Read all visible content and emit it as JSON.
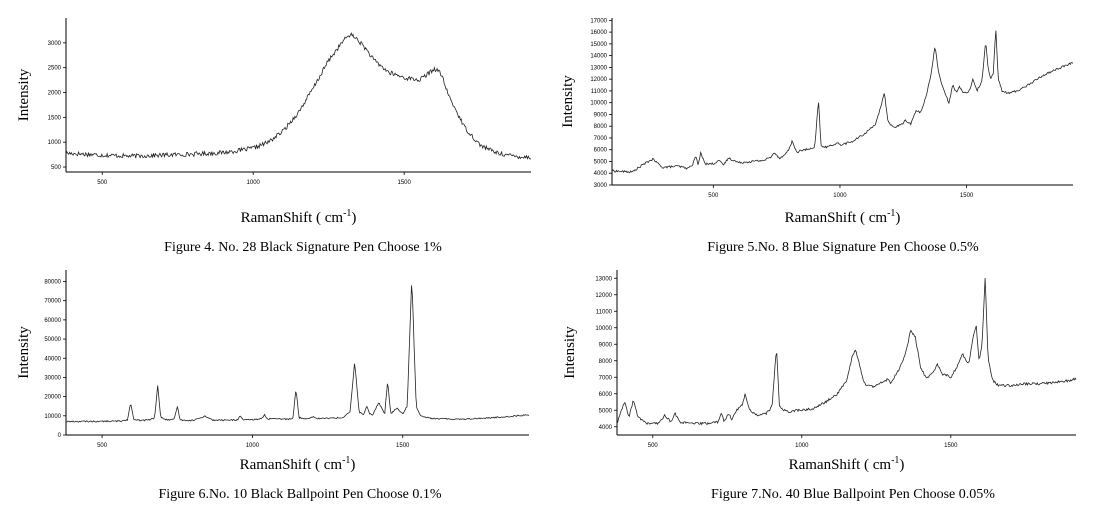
{
  "chart_data": [
    {
      "type": "line",
      "caption": "Figure 4. No. 28 Black Signature Pen Choose 1%",
      "xlabel": "RamanShift ( cm",
      "xlabel_sup": "-1",
      "xlabel_end": ")",
      "ylabel": "Intensity",
      "xlim": [
        380,
        1920
      ],
      "ylim": [
        400,
        3500
      ],
      "xticks": [
        500,
        1000,
        1500
      ],
      "yticks": [
        500,
        1000,
        1500,
        2000,
        2500,
        3000
      ],
      "noise": 45,
      "series": [
        {
          "x": [
            380,
            500,
            600,
            700,
            800,
            900,
            950,
            1000,
            1050,
            1100,
            1150,
            1200,
            1250,
            1300,
            1320,
            1340,
            1370,
            1400,
            1450,
            1500,
            1550,
            1580,
            1600,
            1620,
            1650,
            1700,
            1750,
            1800,
            1850,
            1900,
            1920
          ],
          "y": [
            780,
            740,
            720,
            740,
            760,
            790,
            830,
            880,
            1000,
            1230,
            1600,
            2100,
            2650,
            3050,
            3170,
            3100,
            2900,
            2650,
            2400,
            2300,
            2250,
            2380,
            2480,
            2400,
            1900,
            1300,
            950,
            800,
            730,
            700,
            700
          ]
        }
      ]
    },
    {
      "type": "line",
      "caption": "Figure 5.No. 8 Blue Signature Pen Choose 0.5%",
      "xlabel": "RamanShift ( cm",
      "xlabel_sup": "-1",
      "xlabel_end": ")",
      "ylabel": "Intensity",
      "xlim": [
        100,
        1920
      ],
      "ylim": [
        3000,
        17200
      ],
      "xticks": [
        500,
        1000,
        1500
      ],
      "yticks": [
        3000,
        4000,
        5000,
        6000,
        7000,
        8000,
        9000,
        10000,
        11000,
        12000,
        13000,
        14000,
        15000,
        16000,
        17000
      ],
      "noise": 90,
      "series": [
        {
          "x": [
            100,
            180,
            220,
            260,
            300,
            360,
            400,
            420,
            430,
            440,
            450,
            470,
            500,
            520,
            540,
            560,
            600,
            650,
            700,
            730,
            740,
            760,
            780,
            800,
            810,
            830,
            860,
            900,
            915,
            925,
            940,
            960,
            990,
            1000,
            1050,
            1100,
            1140,
            1160,
            1175,
            1190,
            1210,
            1240,
            1260,
            1280,
            1300,
            1320,
            1340,
            1360,
            1375,
            1390,
            1410,
            1430,
            1445,
            1460,
            1470,
            1490,
            1510,
            1525,
            1540,
            1560,
            1575,
            1585,
            1595,
            1605,
            1615,
            1625,
            1640,
            1660,
            1700,
            1750,
            1800,
            1850,
            1920
          ],
          "y": [
            4200,
            4100,
            4700,
            5200,
            4500,
            4600,
            4400,
            4800,
            5500,
            4700,
            5700,
            4800,
            4800,
            5100,
            4700,
            5300,
            4900,
            5000,
            5100,
            5400,
            5800,
            5300,
            5500,
            6100,
            6700,
            5800,
            6000,
            6100,
            10200,
            6400,
            6200,
            6300,
            6600,
            6400,
            6700,
            7400,
            8200,
            9500,
            10800,
            8400,
            7900,
            8100,
            8500,
            8200,
            9300,
            9200,
            10500,
            12500,
            14800,
            12500,
            11000,
            10000,
            11500,
            10900,
            11400,
            10800,
            11000,
            12000,
            11000,
            11800,
            15200,
            13000,
            12000,
            12500,
            16300,
            12000,
            11000,
            10800,
            11000,
            11600,
            12300,
            12800,
            13400
          ]
        }
      ]
    },
    {
      "type": "line",
      "caption": "Figure 6.No. 10 Black Ballpoint Pen Choose 0.1%",
      "xlabel": "RamanShift ( cm",
      "xlabel_sup": "-1",
      "xlabel_end": ")",
      "ylabel": "Intensity",
      "xlim": [
        380,
        1920
      ],
      "ylim": [
        0,
        86000
      ],
      "xticks": [
        500,
        1000,
        1500
      ],
      "yticks": [
        0,
        10000,
        20000,
        30000,
        40000,
        50000,
        60000,
        70000,
        80000
      ],
      "noise": 350,
      "series": [
        {
          "x": [
            380,
            560,
            585,
            595,
            605,
            630,
            660,
            675,
            685,
            695,
            720,
            740,
            750,
            760,
            800,
            830,
            840,
            870,
            950,
            960,
            970,
            1000,
            1030,
            1040,
            1050,
            1120,
            1135,
            1145,
            1155,
            1180,
            1200,
            1220,
            1300,
            1325,
            1340,
            1355,
            1370,
            1380,
            1390,
            1400,
            1420,
            1440,
            1450,
            1460,
            1480,
            1500,
            1515,
            1530,
            1545,
            1560,
            1600,
            1700,
            1800,
            1920
          ],
          "y": [
            7000,
            7200,
            8000,
            17000,
            8000,
            7500,
            8000,
            9000,
            26000,
            9000,
            7800,
            8000,
            15000,
            7800,
            7600,
            9000,
            10000,
            7700,
            7800,
            10000,
            7800,
            7900,
            8500,
            10500,
            8400,
            8300,
            9000,
            24000,
            9000,
            8500,
            9500,
            8600,
            9000,
            12000,
            38000,
            12000,
            10500,
            15000,
            11000,
            10500,
            17000,
            11000,
            28000,
            11000,
            14000,
            11000,
            15000,
            82000,
            15000,
            10000,
            8500,
            8300,
            9000,
            10500
          ]
        }
      ]
    },
    {
      "type": "line",
      "caption": "Figure 7.No. 40 Blue Ballpoint Pen Choose 0.05%",
      "xlabel": "RamanShift ( cm",
      "xlabel_sup": "-1",
      "xlabel_end": ")",
      "ylabel": "Intensity",
      "xlim": [
        380,
        1920
      ],
      "ylim": [
        3500,
        13500
      ],
      "xticks": [
        500,
        1000,
        1500
      ],
      "yticks": [
        4000,
        5000,
        6000,
        7000,
        8000,
        9000,
        10000,
        11000,
        12000,
        13000
      ],
      "noise": 70,
      "series": [
        {
          "x": [
            380,
            405,
            420,
            435,
            450,
            480,
            520,
            540,
            560,
            575,
            590,
            620,
            680,
            720,
            730,
            740,
            755,
            765,
            780,
            800,
            810,
            825,
            850,
            880,
            900,
            915,
            925,
            940,
            955,
            980,
            1000,
            1040,
            1080,
            1120,
            1150,
            1170,
            1180,
            1190,
            1210,
            1240,
            1270,
            1290,
            1300,
            1310,
            1330,
            1350,
            1365,
            1380,
            1400,
            1420,
            1440,
            1455,
            1470,
            1490,
            1500,
            1520,
            1540,
            1560,
            1575,
            1585,
            1595,
            1605,
            1615,
            1625,
            1640,
            1660,
            1700,
            1750,
            1800,
            1850,
            1900,
            1920
          ],
          "y": [
            4200,
            5500,
            4600,
            5600,
            4600,
            4200,
            4200,
            4700,
            4300,
            4800,
            4300,
            4200,
            4200,
            4300,
            4900,
            4300,
            4800,
            4400,
            5000,
            5300,
            6000,
            5000,
            4700,
            4800,
            5200,
            8800,
            5300,
            5000,
            4900,
            5000,
            5000,
            5100,
            5500,
            6000,
            6800,
            8300,
            8700,
            8000,
            6600,
            6400,
            6700,
            6900,
            6600,
            7000,
            7600,
            8600,
            9800,
            9500,
            7500,
            6900,
            7300,
            7800,
            7200,
            7100,
            7000,
            7600,
            8400,
            7800,
            9500,
            10200,
            8000,
            9000,
            13000,
            8200,
            6800,
            6500,
            6500,
            6600,
            6600,
            6700,
            6800,
            6900
          ]
        }
      ]
    }
  ]
}
